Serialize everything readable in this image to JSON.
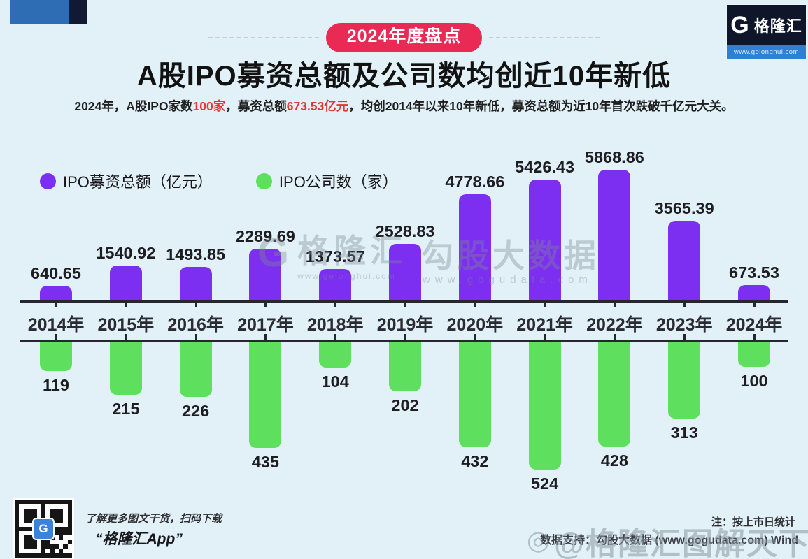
{
  "canvas": {
    "background": "#e2f1f7"
  },
  "header": {
    "badge_label": "2024年度盘点",
    "badge_color": "#e82a55",
    "title": "A股IPO募资总额及公司数均创近10年新低",
    "highlight_color": "#e23636",
    "subtitle_segments": [
      {
        "text": "2024年，A股IPO家数",
        "red": false
      },
      {
        "text": "100家",
        "red": true
      },
      {
        "text": "，募资总额",
        "red": false
      },
      {
        "text": "673.53亿元",
        "red": true
      },
      {
        "text": "，均创2014年以来10年新低，募资总额为近10年首次跌破千亿元大关。",
        "red": false
      }
    ]
  },
  "brand": {
    "logo_letter": "G",
    "logo_name": "格隆汇",
    "logo_url": "www.gelonghui.com"
  },
  "legend": {
    "items": [
      {
        "label": "IPO募资总额（亿元）",
        "color": "#7c2ff0"
      },
      {
        "label": "IPO公司数（家）",
        "color": "#5ee05e"
      }
    ]
  },
  "chart_data": {
    "type": "bar",
    "orientation": "diverging-vertical",
    "title": "A股IPO募资总额及公司数均创近10年新低",
    "categories": [
      "2014年",
      "2015年",
      "2016年",
      "2017年",
      "2018年",
      "2019年",
      "2020年",
      "2021年",
      "2022年",
      "2023年",
      "2024年"
    ],
    "series": [
      {
        "name": "IPO募资总额（亿元）",
        "color": "#7c2ff0",
        "direction": "up",
        "values": [
          640.65,
          1540.92,
          1493.85,
          2289.69,
          1373.57,
          2528.83,
          4778.66,
          5426.43,
          5868.86,
          3565.39,
          673.53
        ]
      },
      {
        "name": "IPO公司数（家）",
        "color": "#5ee05e",
        "direction": "down",
        "values": [
          119,
          215,
          226,
          435,
          104,
          202,
          432,
          524,
          428,
          313,
          100
        ]
      }
    ],
    "axis": {
      "line_color": "#26262e",
      "label_color": "#2b2b33"
    },
    "grid": false,
    "legend_position": "top-left"
  },
  "watermarks": {
    "center_left_glyph": "G",
    "center_left_name": "格隆汇",
    "center_left_url": "www.gelonghui.com",
    "center_right_name": "勾股大数据",
    "center_right_url": "www.gogudata.com",
    "corner_icon": "◎",
    "corner": "@格隆汇图解天下"
  },
  "footer": {
    "qr_caption": "了解更多图文干货，扫码下载",
    "qr_app": "“格隆汇App”",
    "note": "注：按上市日统计",
    "support": "数据支持：勾股大数据 (www.gogudata.com) Wind"
  }
}
